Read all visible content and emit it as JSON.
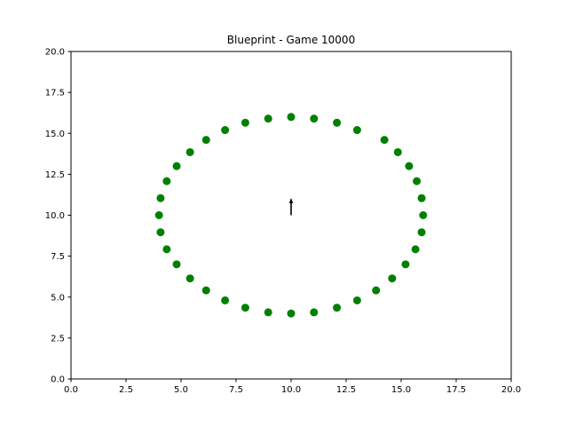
{
  "chart_data": {
    "type": "scatter",
    "title": "Blueprint - Game 10000",
    "xlabel": "",
    "ylabel": "",
    "xlim": [
      0,
      20
    ],
    "ylim": [
      0,
      20
    ],
    "xticks": [
      "0.0",
      "2.5",
      "5.0",
      "7.5",
      "10.0",
      "12.5",
      "15.0",
      "17.5",
      "20.0"
    ],
    "yticks": [
      "0.0",
      "2.5",
      "5.0",
      "7.5",
      "10.0",
      "12.5",
      "15.0",
      "17.5",
      "20.0"
    ],
    "grid": false,
    "marker_color": "#008000",
    "arrow_color": "#000000",
    "points": [
      [
        16.0,
        10.0
      ],
      [
        15.93,
        11.04
      ],
      [
        15.71,
        12.08
      ],
      [
        15.36,
        13.0
      ],
      [
        14.85,
        13.85
      ],
      [
        14.24,
        14.6
      ],
      [
        13.0,
        15.2
      ],
      [
        12.08,
        15.65
      ],
      [
        11.04,
        15.9
      ],
      [
        10.0,
        16.0
      ],
      [
        8.96,
        15.9
      ],
      [
        7.92,
        15.65
      ],
      [
        7.0,
        15.2
      ],
      [
        6.14,
        14.6
      ],
      [
        5.41,
        13.85
      ],
      [
        4.8,
        13.0
      ],
      [
        4.35,
        12.08
      ],
      [
        4.07,
        11.04
      ],
      [
        4.0,
        10.0
      ],
      [
        4.07,
        8.96
      ],
      [
        4.35,
        7.92
      ],
      [
        4.8,
        7.0
      ],
      [
        5.41,
        6.14
      ],
      [
        6.14,
        5.41
      ],
      [
        7.0,
        4.8
      ],
      [
        7.92,
        4.35
      ],
      [
        8.96,
        4.07
      ],
      [
        10.0,
        4.0
      ],
      [
        11.04,
        4.07
      ],
      [
        12.08,
        4.35
      ],
      [
        13.0,
        4.8
      ],
      [
        13.86,
        5.41
      ],
      [
        14.59,
        6.14
      ],
      [
        15.2,
        7.0
      ],
      [
        15.65,
        7.92
      ],
      [
        15.93,
        8.96
      ]
    ],
    "arrow": {
      "x": 10.0,
      "y": 10.0,
      "dx": 0.0,
      "dy": 1.0
    }
  }
}
